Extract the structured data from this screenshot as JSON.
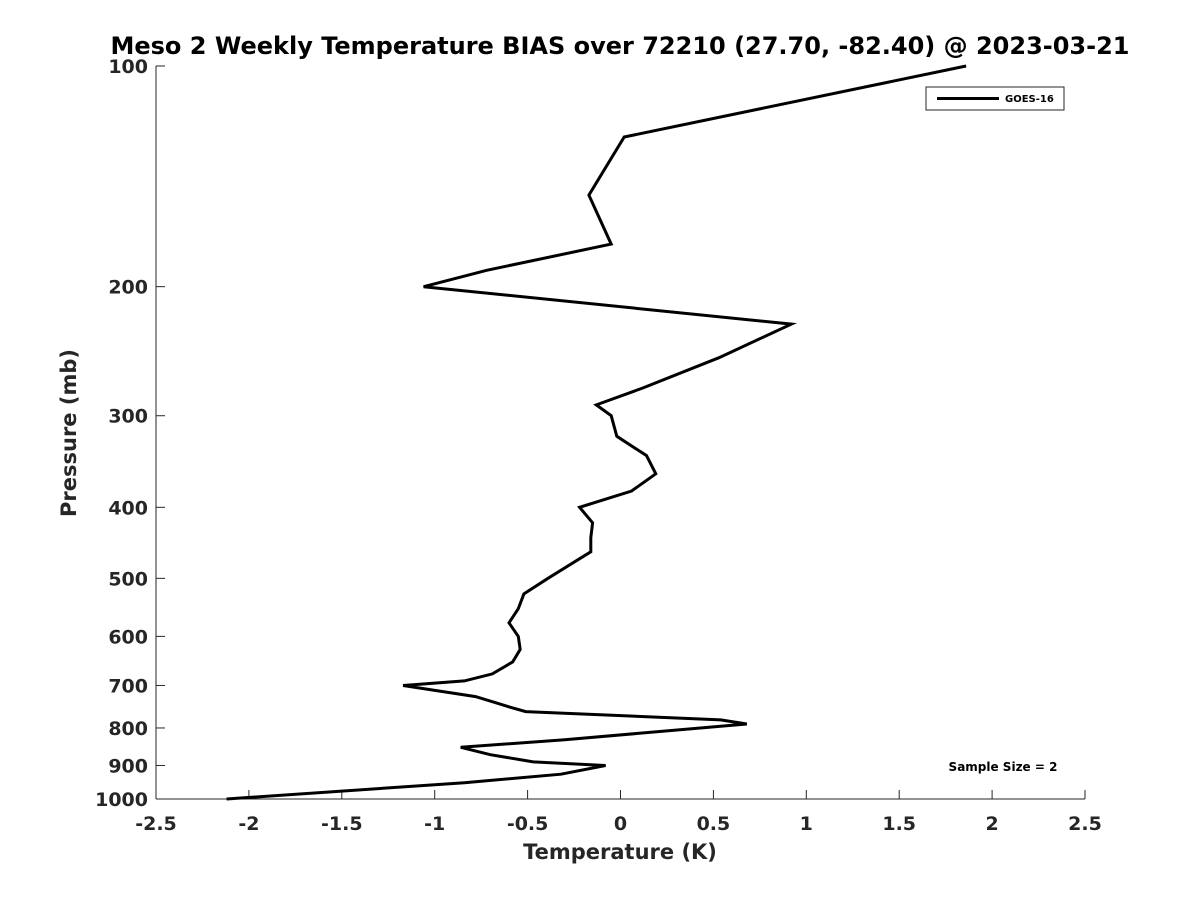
{
  "chart_data": {
    "type": "line",
    "title": "Meso 2 Weekly Temperature BIAS over 72210 (27.70, -82.40) @ 2023-03-21",
    "xlabel": "Temperature (K)",
    "ylabel": "Pressure (mb)",
    "xlim": [
      -2.5,
      2.5
    ],
    "ylim": [
      100,
      1000
    ],
    "y_scale": "log",
    "y_reversed": true,
    "x_ticks": [
      -2.5,
      -2,
      -1.5,
      -1,
      -0.5,
      0,
      0.5,
      1,
      1.5,
      2,
      2.5
    ],
    "x_tick_labels": [
      "-2.5",
      "-2",
      "-1.5",
      "-1",
      "-0.5",
      "0",
      "0.5",
      "1",
      "1.5",
      "2",
      "2.5"
    ],
    "y_ticks": [
      100,
      200,
      300,
      400,
      500,
      600,
      700,
      800,
      900,
      1000
    ],
    "y_tick_labels": [
      "100",
      "200",
      "300",
      "400",
      "500",
      "600",
      "700",
      "800",
      "900",
      "1000"
    ],
    "grid": false,
    "legend": {
      "placement": "top-right",
      "entries": [
        "GOES-16"
      ]
    },
    "annotation": "Sample Size = 2",
    "series": [
      {
        "name": "GOES-16",
        "color": "#000000",
        "points": [
          [
            1.86,
            100
          ],
          [
            0.02,
            125
          ],
          [
            -0.17,
            150
          ],
          [
            -0.05,
            175
          ],
          [
            -0.72,
            190
          ],
          [
            -1.06,
            200
          ],
          [
            0.92,
            225
          ],
          [
            0.53,
            250
          ],
          [
            0.12,
            275
          ],
          [
            -0.13,
            290
          ],
          [
            -0.05,
            300
          ],
          [
            -0.02,
            320
          ],
          [
            0.14,
            340
          ],
          [
            0.19,
            360
          ],
          [
            0.06,
            380
          ],
          [
            -0.22,
            400
          ],
          [
            -0.15,
            420
          ],
          [
            -0.16,
            440
          ],
          [
            -0.16,
            460
          ],
          [
            -0.39,
            500
          ],
          [
            -0.52,
            525
          ],
          [
            -0.55,
            550
          ],
          [
            -0.6,
            575
          ],
          [
            -0.55,
            600
          ],
          [
            -0.54,
            625
          ],
          [
            -0.58,
            650
          ],
          [
            -0.69,
            675
          ],
          [
            -0.84,
            690
          ],
          [
            -1.17,
            700
          ],
          [
            -0.78,
            725
          ],
          [
            -0.59,
            750
          ],
          [
            -0.51,
            760
          ],
          [
            0.54,
            780
          ],
          [
            0.68,
            790
          ],
          [
            -0.3,
            830
          ],
          [
            -0.86,
            850
          ],
          [
            -0.7,
            870
          ],
          [
            -0.47,
            890
          ],
          [
            -0.08,
            900
          ],
          [
            -0.32,
            925
          ],
          [
            -0.84,
            950
          ],
          [
            -2.12,
            1000
          ]
        ]
      }
    ]
  }
}
